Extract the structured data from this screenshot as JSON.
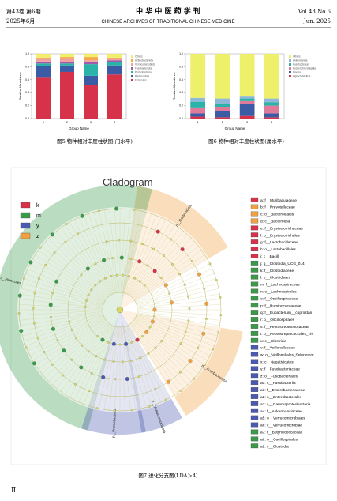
{
  "header": {
    "volume": "第43卷  第6期",
    "date": "2025年6月",
    "journal_cn": "中 华 中 医 药 学 刊",
    "journal_en": "CHINESE ARCHIVES OF TRADITIONAL CHINESE MEDICINE",
    "vol_en": "Vol.43 No.6",
    "date_en": "Jun. 2025"
  },
  "figures": [
    {
      "caption": "图5   物种相对丰度柱状图(门水平)",
      "chart_data": {
        "type": "bar",
        "stacked": true,
        "x_label": "Group Name",
        "y_label": "Relative Abundance",
        "categories": [
          "1",
          "2",
          "3",
          "4"
        ],
        "ylim": [
          0,
          1
        ],
        "yticks": [
          {
            "value": 0,
            "label": "0.0"
          },
          {
            "value": 0.2,
            "label": "0.2"
          },
          {
            "value": 0.4,
            "label": "0.4"
          },
          {
            "value": 0.6,
            "label": "0.6"
          },
          {
            "value": 0.8,
            "label": "0.8"
          },
          {
            "value": 1,
            "label": "1.0"
          }
        ],
        "series": [
          {
            "name": "Firmicutes",
            "color": "#d6334a",
            "values": [
              0.63,
              0.72,
              0.52,
              0.68
            ]
          },
          {
            "name": "Bacteroidota",
            "color": "#3b5ba5",
            "values": [
              0.18,
              0.1,
              0.14,
              0.14
            ]
          },
          {
            "name": "Proteobacteria",
            "color": "#2ab3a8",
            "values": [
              0.04,
              0.03,
              0.18,
              0.05
            ]
          },
          {
            "name": "Fusobacteriota",
            "color": "#a05ca8",
            "values": [
              0.03,
              0.02,
              0.04,
              0.03
            ]
          },
          {
            "name": "Verrucomicrobiota",
            "color": "#f0a0a0",
            "values": [
              0.04,
              0.05,
              0.02,
              0.02
            ]
          },
          {
            "name": "Actinobacteriota",
            "color": "#f5a84a",
            "values": [
              0.02,
              0.03,
              0.05,
              0.02
            ]
          },
          {
            "name": "Others",
            "color": "#f0ee6a",
            "values": [
              0.06,
              0.05,
              0.05,
              0.06
            ]
          }
        ]
      }
    },
    {
      "caption": "图6   物种相对丰度柱状图(属水平)",
      "chart_data": {
        "type": "bar",
        "stacked": true,
        "x_label": "Group Name",
        "y_label": "Relative Abundance",
        "categories": [
          "1",
          "2",
          "3",
          "4"
        ],
        "ylim": [
          0,
          1
        ],
        "yticks": [
          {
            "value": 0,
            "label": "0.0"
          },
          {
            "value": 0.2,
            "label": "0.2"
          },
          {
            "value": 0.4,
            "label": "0.4"
          },
          {
            "value": 0.6,
            "label": "0.6"
          },
          {
            "value": 0.8,
            "label": "0.8"
          },
          {
            "value": 1,
            "label": "1.0"
          }
        ],
        "series": [
          {
            "name": "Ligilactobacillus",
            "color": "#d6334a",
            "values": [
              0.03,
              0.02,
              0.04,
              0.02
            ]
          },
          {
            "name": "Blautia",
            "color": "#3b5ba5",
            "values": [
              0.05,
              0.1,
              0.18,
              0.06
            ]
          },
          {
            "name": "Escherichia-Shigella",
            "color": "#e07a9a",
            "values": [
              0.08,
              0.06,
              0.05,
              0.12
            ]
          },
          {
            "name": "Fusobacterium",
            "color": "#2ab3a8",
            "values": [
              0.1,
              0.05,
              0.04,
              0.05
            ]
          },
          {
            "name": "Akkermansia",
            "color": "#8fb8d8",
            "values": [
              0.06,
              0.08,
              0.03,
              0.06
            ]
          },
          {
            "name": "Others",
            "color": "#eef06a",
            "values": [
              0.68,
              0.69,
              0.66,
              0.69
            ]
          }
        ]
      }
    }
  ],
  "cladogram": {
    "title": "Cladogram",
    "caption": "图7   进化分支图(LDA＞4)",
    "groups": [
      {
        "label": "k",
        "color": "#d6334a"
      },
      {
        "label": "m",
        "color": "#3a9a4a"
      },
      {
        "label": "y",
        "color": "#4a5ab0"
      },
      {
        "label": "z",
        "color": "#f0a040"
      }
    ],
    "clades": [
      {
        "label": "p__Bacteroidota",
        "color": "#f0a040"
      },
      {
        "label": "p__Firmicutes",
        "color": "#3a9a4a"
      },
      {
        "label": "p__Proteobacteria",
        "color": "#4a5ab0"
      },
      {
        "label": "p__Verrucomicrobiota",
        "color": "#4a5ab0"
      },
      {
        "label": "p__Fusobacteriota",
        "color": "#f0a040"
      }
    ],
    "items": [
      {
        "label": "a: f__Muribaculaceae",
        "color": "#d6334a"
      },
      {
        "label": "b: f__Prevotellaceae",
        "color": "#f0a040"
      },
      {
        "label": "c: o__Bacteroidales",
        "color": "#f0a040"
      },
      {
        "label": "d: c__Bacteroidia",
        "color": "#f0a040"
      },
      {
        "label": "e: f__Erysipelotrichaceae",
        "color": "#d6334a"
      },
      {
        "label": "f: o__Erysipelotrichales",
        "color": "#d6334a"
      },
      {
        "label": "g: f__Lactobacillaceae",
        "color": "#d6334a"
      },
      {
        "label": "h: o__Lactobacillales",
        "color": "#d6334a"
      },
      {
        "label": "i: c__Bacilli",
        "color": "#d6334a"
      },
      {
        "label": "j: g__Clostridia_UCG_014",
        "color": "#3a9a4a"
      },
      {
        "label": "k: f__Clostridiaceae",
        "color": "#3a9a4a"
      },
      {
        "label": "l: o__Clostridiales",
        "color": "#3a9a4a"
      },
      {
        "label": "m: f__Lachnospiraceae",
        "color": "#3a9a4a"
      },
      {
        "label": "n: o__Lachnospirales",
        "color": "#3a9a4a"
      },
      {
        "label": "o: f__Oscillospiraceae",
        "color": "#3a9a4a"
      },
      {
        "label": "p: f__Ruminococcaceae",
        "color": "#3a9a4a"
      },
      {
        "label": "q: f__Eubacterium__coprostan",
        "color": "#3a9a4a"
      },
      {
        "label": "r: o__Oscillospirales",
        "color": "#3a9a4a"
      },
      {
        "label": "s: f__Peptostreptococcaceae",
        "color": "#3a9a4a"
      },
      {
        "label": "t: o__Peptostreptococcales_Tis",
        "color": "#3a9a4a"
      },
      {
        "label": "u: c__Clostridia",
        "color": "#3a9a4a"
      },
      {
        "label": "v: f__Veillonellaceae",
        "color": "#4a5ab0"
      },
      {
        "label": "w: o__Veillonellales_Selenomor",
        "color": "#4a5ab0"
      },
      {
        "label": "x: c__Negativicutes",
        "color": "#4a5ab0"
      },
      {
        "label": "y: f__Fusobacteriaceae",
        "color": "#4a5ab0"
      },
      {
        "label": "z: o__Fusobacteriales",
        "color": "#4a5ab0"
      },
      {
        "label": "a0: c__Fusobacteriia",
        "color": "#4a5ab0"
      },
      {
        "label": "a1: f__Enterobacteriaceae",
        "color": "#4a5ab0"
      },
      {
        "label": "a2: o__Enterobacterales",
        "color": "#4a5ab0"
      },
      {
        "label": "a3: c__Gammaproteobacteria",
        "color": "#4a5ab0"
      },
      {
        "label": "a4: f__Akkermansiaceae",
        "color": "#4a5ab0"
      },
      {
        "label": "a5: o__Verrucomicrobiales",
        "color": "#4a5ab0"
      },
      {
        "label": "a6: c__Verrucomicrobiae",
        "color": "#4a5ab0"
      },
      {
        "label": "a7: f__Butyricicoccaceae",
        "color": "#3a9a4a"
      },
      {
        "label": "a8: o__Oscillospirales",
        "color": "#3a9a4a"
      },
      {
        "label": "a9: c__Clostridia",
        "color": "#3a9a4a"
      }
    ]
  },
  "page_number": "Ⅱ"
}
